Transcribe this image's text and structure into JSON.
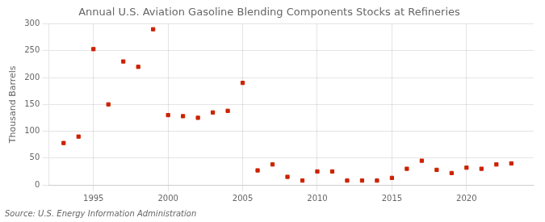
{
  "chart_data": {
    "type": "scatter",
    "title": "Annual U.S. Aviation Gasoline Blending Components Stocks at Refineries",
    "ylabel": "Thousand Barrels",
    "annotation": "Source: U.S. Energy Information Administration",
    "x": [
      1993,
      1994,
      1995,
      1996,
      1997,
      1998,
      1999,
      2000,
      2001,
      2002,
      2003,
      2004,
      2005,
      2006,
      2007,
      2008,
      2009,
      2010,
      2011,
      2012,
      2013,
      2014,
      2015,
      2016,
      2017,
      2018,
      2019,
      2020,
      2021,
      2022,
      2023
    ],
    "values": [
      78,
      90,
      253,
      150,
      230,
      220,
      290,
      130,
      128,
      125,
      135,
      138,
      190,
      27,
      38,
      15,
      8,
      25,
      25,
      8,
      8,
      8,
      13,
      30,
      45,
      28,
      22,
      32,
      30,
      38,
      40
    ],
    "color": "#cc2200",
    "marker": "square",
    "xlim": [
      1992,
      2024.5
    ],
    "xticks": [
      1995,
      2000,
      2005,
      2010,
      2015,
      2020
    ],
    "ylim": [
      0,
      300
    ],
    "yticks": [
      0,
      50,
      100,
      150,
      200,
      250,
      300
    ],
    "grid": true
  }
}
